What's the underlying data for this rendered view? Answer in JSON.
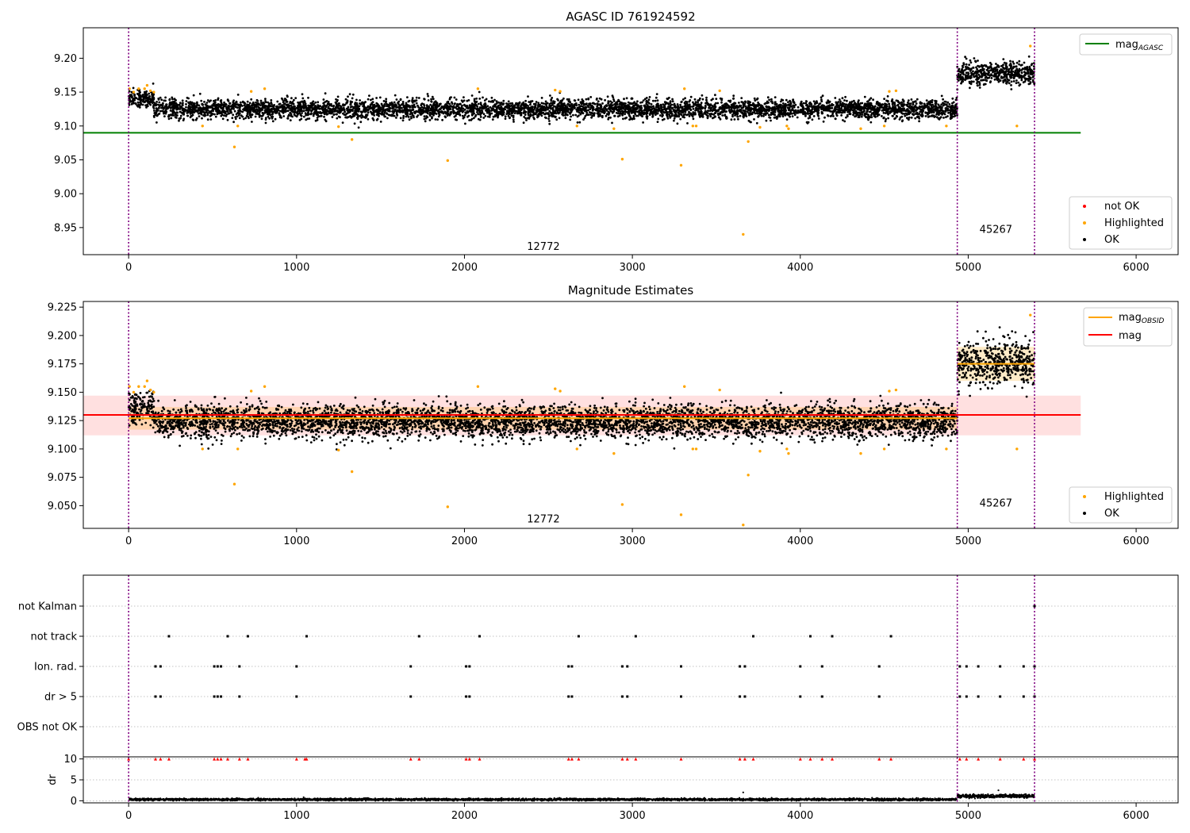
{
  "chart_data": [
    {
      "type": "scatter",
      "title": "AGASC ID 761924592",
      "xlim": [
        -270,
        6250
      ],
      "ylim": [
        8.91,
        9.245
      ],
      "x_ticks": [
        0,
        1000,
        2000,
        3000,
        4000,
        5000,
        6000
      ],
      "y_ticks": [
        8.95,
        9.0,
        9.05,
        9.1,
        9.15,
        9.2
      ],
      "y_tick_labels": [
        "8.95",
        "9.00",
        "9.05",
        "9.10",
        "9.15",
        "9.20"
      ],
      "obsid_boundaries": [
        0,
        4935,
        5395
      ],
      "obsid_labels": [
        {
          "x": 2470,
          "y": 8.922,
          "text": "12772"
        },
        {
          "x": 5165,
          "y": 8.947,
          "text": "45267"
        }
      ],
      "ok_points": {
        "color": "#000000",
        "segments": [
          {
            "x_start": 0,
            "x_end": 150,
            "center": 9.14,
            "spread": 0.01
          },
          {
            "x_start": 150,
            "x_end": 4935,
            "center": 9.125,
            "spread": 0.012
          },
          {
            "x_start": 4935,
            "x_end": 5395,
            "center": 9.178,
            "spread": 0.015
          }
        ]
      },
      "highlighted_points": {
        "color": "#ffa500",
        "x": [
          5,
          30,
          60,
          95,
          110,
          130,
          150,
          440,
          630,
          650,
          730,
          810,
          1250,
          1330,
          1900,
          2080,
          2540,
          2570,
          2670,
          2890,
          2940,
          3290,
          3310,
          3360,
          3380,
          3520,
          3660,
          3690,
          3760,
          3920,
          3930,
          4360,
          4500,
          4530,
          4570,
          4870,
          5290,
          5370
        ],
        "y": [
          9.155,
          9.15,
          9.155,
          9.155,
          9.16,
          9.152,
          9.15,
          9.1,
          9.069,
          9.1,
          9.151,
          9.155,
          9.099,
          9.08,
          9.049,
          9.155,
          9.153,
          9.151,
          9.1,
          9.096,
          9.051,
          9.042,
          9.155,
          9.1,
          9.1,
          9.152,
          8.94,
          9.077,
          9.098,
          9.1,
          9.096,
          9.096,
          9.1,
          9.151,
          9.152,
          9.1,
          9.1,
          9.218
        ]
      },
      "lines": [
        {
          "name": "mag",
          "name_sub": "AGASC",
          "color": "#008000",
          "y": 9.09,
          "x_start": -270,
          "x_end": 5670
        }
      ],
      "legend_upper": {
        "placement": "top-right"
      },
      "legend_lower": {
        "placement": "bottom-right",
        "entries": [
          {
            "name": "not OK",
            "color": "#ff0000"
          },
          {
            "name": "Highlighted",
            "color": "#ffa500"
          },
          {
            "name": "OK",
            "color": "#000000"
          }
        ]
      }
    },
    {
      "type": "scatter",
      "title": "Magnitude Estimates",
      "xlim": [
        -270,
        6250
      ],
      "ylim": [
        9.03,
        9.23
      ],
      "x_ticks": [
        0,
        1000,
        2000,
        3000,
        4000,
        5000,
        6000
      ],
      "y_ticks": [
        9.05,
        9.075,
        9.1,
        9.125,
        9.15,
        9.175,
        9.2,
        9.225
      ],
      "y_tick_labels": [
        "9.050",
        "9.075",
        "9.100",
        "9.125",
        "9.150",
        "9.175",
        "9.200",
        "9.225"
      ],
      "obsid_boundaries": [
        0,
        4935,
        5395
      ],
      "obsid_labels": [
        {
          "x": 2470,
          "y": 9.038,
          "text": "12772"
        },
        {
          "x": 5165,
          "y": 9.052,
          "text": "45267"
        }
      ],
      "bands": [
        {
          "color": "#ff0000",
          "opacity": 0.12,
          "y0": 9.112,
          "y1": 9.147,
          "x_start": -270,
          "x_end": 5670
        },
        {
          "color": "#ffa500",
          "opacity": 0.22,
          "y0": 9.117,
          "y1": 9.137,
          "x_start": 0,
          "x_end": 4935
        },
        {
          "color": "#ffa500",
          "opacity": 0.22,
          "y0": 9.16,
          "y1": 9.19,
          "x_start": 4935,
          "x_end": 5395
        }
      ],
      "lines": [
        {
          "name": "mag",
          "name_sub": "OBSID",
          "color": "#ffa500",
          "segments": [
            {
              "x_start": 0,
              "x_end": 4935,
              "y": 9.127
            },
            {
              "x_start": 4935,
              "x_end": 5395,
              "y": 9.175
            }
          ]
        },
        {
          "name": "mag",
          "name_sub": "",
          "color": "#ff0000",
          "segments": [
            {
              "x_start": -270,
              "x_end": 5670,
              "y": 9.13
            }
          ]
        }
      ],
      "ok_points": {
        "color": "#000000",
        "segments": [
          {
            "x_start": 0,
            "x_end": 150,
            "center": 9.136,
            "spread": 0.012
          },
          {
            "x_start": 150,
            "x_end": 4935,
            "center": 9.124,
            "spread": 0.012
          },
          {
            "x_start": 4935,
            "x_end": 5395,
            "center": 9.175,
            "spread": 0.017
          }
        ]
      },
      "highlighted_points": {
        "color": "#ffa500",
        "x": [
          5,
          30,
          60,
          95,
          110,
          130,
          150,
          440,
          630,
          650,
          730,
          810,
          1250,
          1330,
          1900,
          2080,
          2540,
          2570,
          2670,
          2890,
          2940,
          3290,
          3310,
          3360,
          3380,
          3520,
          3660,
          3690,
          3760,
          3920,
          3930,
          4360,
          4500,
          4530,
          4570,
          4870,
          5290,
          5370
        ],
        "y": [
          9.155,
          9.15,
          9.155,
          9.155,
          9.16,
          9.152,
          9.15,
          9.1,
          9.069,
          9.1,
          9.151,
          9.155,
          9.099,
          9.08,
          9.049,
          9.155,
          9.153,
          9.151,
          9.1,
          9.096,
          9.051,
          9.042,
          9.155,
          9.1,
          9.1,
          9.152,
          9.033,
          9.077,
          9.098,
          9.1,
          9.096,
          9.096,
          9.1,
          9.151,
          9.152,
          9.1,
          9.1,
          9.218
        ]
      },
      "legend_upper": {
        "placement": "top-right"
      },
      "legend_lower": {
        "placement": "bottom-right",
        "entries": [
          {
            "name": "Highlighted",
            "color": "#ffa500"
          },
          {
            "name": "OK",
            "color": "#000000"
          }
        ]
      }
    },
    {
      "type": "scatter",
      "title": "",
      "xlim": [
        -270,
        6250
      ],
      "x_ticks": [
        0,
        1000,
        2000,
        3000,
        4000,
        5000,
        6000
      ],
      "obsid_boundaries": [
        0,
        4935,
        5395
      ],
      "flag_rows": [
        "not Kalman",
        "not track",
        "Ion. rad.",
        "dr > 5",
        "OBS not OK"
      ],
      "flag_points": [
        {
          "flag": "not Kalman",
          "x": [
            5395
          ]
        },
        {
          "flag": "not track",
          "x": [
            240,
            590,
            710,
            1060,
            1730,
            2090,
            2680,
            3020,
            3720,
            4060,
            4190,
            4540
          ]
        },
        {
          "flag": "Ion. rad.",
          "x": [
            160,
            190,
            510,
            530,
            550,
            660,
            1000,
            1680,
            2010,
            2030,
            2620,
            2640,
            2940,
            2970,
            3290,
            3640,
            3670,
            4000,
            4130,
            4470,
            4950,
            4990,
            5060,
            5190,
            5330,
            5395
          ]
        },
        {
          "flag": "dr > 5",
          "x": [
            160,
            190,
            510,
            530,
            550,
            660,
            1000,
            1680,
            2010,
            2030,
            2620,
            2640,
            2940,
            2970,
            3290,
            3640,
            3670,
            4000,
            4130,
            4470,
            4950,
            4990,
            5060,
            5190,
            5330,
            5395
          ]
        },
        {
          "flag": "OBS not OK",
          "x": []
        }
      ],
      "dr_panel": {
        "ylabel": "dr",
        "ylim": [
          -0.5,
          10.5
        ],
        "y_ticks": [
          0,
          5,
          10
        ],
        "y_tick_labels": [
          "0",
          "5",
          "10"
        ],
        "clipped_color": "#ff0000",
        "clipped_x": [
          0,
          160,
          190,
          240,
          510,
          530,
          550,
          590,
          660,
          710,
          1000,
          1050,
          1060,
          1680,
          1730,
          2010,
          2030,
          2090,
          2620,
          2640,
          2680,
          2940,
          2970,
          3020,
          3290,
          3640,
          3670,
          3720,
          4000,
          4060,
          4130,
          4190,
          4470,
          4540,
          4950,
          4990,
          5060,
          5190,
          5330,
          5395
        ],
        "baseline_segments": [
          {
            "x_start": 0,
            "x_end": 4935,
            "center": 0.3,
            "spread": 0.25
          },
          {
            "x_start": 4935,
            "x_end": 5395,
            "center": 1.1,
            "spread": 0.45
          }
        ],
        "outliers": [
          {
            "x": 3660,
            "y": 2.0
          },
          {
            "x": 5180,
            "y": 2.5
          }
        ]
      }
    }
  ]
}
